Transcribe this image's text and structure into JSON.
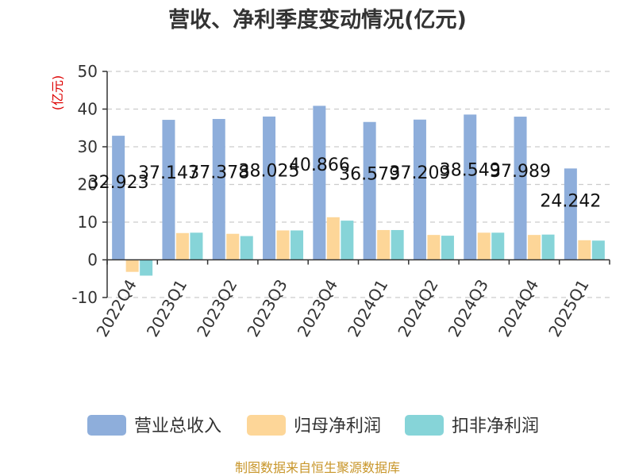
{
  "chart_data": {
    "type": "bar",
    "title": "营收、净利季度变动情况(亿元)",
    "ylabel": "(亿元)",
    "xlabel": "",
    "ylim": [
      -10,
      50
    ],
    "yticks": [
      -10,
      0,
      10,
      20,
      30,
      40,
      50
    ],
    "grid": true,
    "legend_position": "bottom",
    "categories": [
      "2022Q4",
      "2023Q1",
      "2023Q2",
      "2023Q3",
      "2023Q4",
      "2024Q1",
      "2024Q2",
      "2024Q3",
      "2024Q4",
      "2025Q1"
    ],
    "series": [
      {
        "name": "营业总收入",
        "color": "#8eaedb",
        "values": [
          32.923,
          37.147,
          37.378,
          38.025,
          40.866,
          36.579,
          37.209,
          38.549,
          37.989,
          24.242
        ],
        "data_labels": [
          "32.923",
          "37.147",
          "37.378",
          "38.025",
          "40.866",
          "36.579",
          "37.209",
          "38.549",
          "37.989",
          "24.242"
        ]
      },
      {
        "name": "归母净利润",
        "color": "#fdd698",
        "values": [
          -3.2,
          7.1,
          6.9,
          7.8,
          11.3,
          7.9,
          6.6,
          7.2,
          6.6,
          5.2
        ]
      },
      {
        "name": "扣非净利润",
        "color": "#86d4d8",
        "values": [
          -4.2,
          7.2,
          6.3,
          7.8,
          10.4,
          7.9,
          6.4,
          7.2,
          6.7,
          5.1
        ]
      }
    ],
    "source": "制图数据来自恒生聚源数据库"
  }
}
